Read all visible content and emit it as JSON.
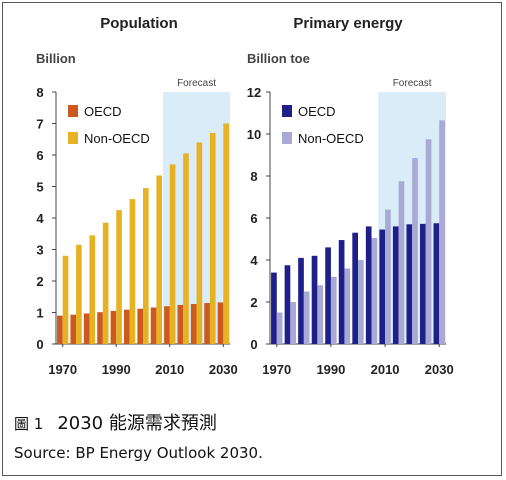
{
  "chart_data": [
    {
      "type": "bar",
      "title": "Population",
      "ylabel": "Billion",
      "ylim": [
        0,
        8
      ],
      "yticks": [
        "0",
        "1",
        "2",
        "3",
        "4",
        "5",
        "6",
        "7",
        "8"
      ],
      "xticks": [
        "1970",
        "1990",
        "2010",
        "2030"
      ],
      "forecast_label": "Forecast",
      "forecast_start": 2010,
      "stacked": false,
      "categories": [
        1970,
        1975,
        1980,
        1985,
        1990,
        1995,
        2000,
        2005,
        2010,
        2015,
        2020,
        2025,
        2030
      ],
      "series": [
        {
          "name": "OECD",
          "color": "#cc5a1e",
          "values": [
            0.9,
            0.93,
            0.97,
            1.01,
            1.05,
            1.09,
            1.12,
            1.16,
            1.2,
            1.24,
            1.27,
            1.3,
            1.32
          ]
        },
        {
          "name": "Non-OECD",
          "color": "#e6b223",
          "values": [
            2.8,
            3.15,
            3.45,
            3.85,
            4.25,
            4.6,
            4.95,
            5.35,
            5.7,
            6.05,
            6.4,
            6.7,
            7.0
          ]
        }
      ],
      "legend_position": "top-left"
    },
    {
      "type": "bar",
      "title": "Primary energy",
      "ylabel": "Billion toe",
      "ylim": [
        0,
        12
      ],
      "yticks": [
        "0",
        "2",
        "4",
        "6",
        "8",
        "10",
        "12"
      ],
      "xticks": [
        "1970",
        "1990",
        "2010",
        "2030"
      ],
      "forecast_label": "Forecast",
      "forecast_start": 2010,
      "stacked": false,
      "categories": [
        1970,
        1975,
        1980,
        1985,
        1990,
        1995,
        2000,
        2005,
        2010,
        2015,
        2020,
        2025,
        2030
      ],
      "series": [
        {
          "name": "OECD",
          "color": "#1f1f8a",
          "values": [
            3.4,
            3.75,
            4.1,
            4.2,
            4.6,
            4.95,
            5.3,
            5.6,
            5.45,
            5.6,
            5.7,
            5.72,
            5.75
          ]
        },
        {
          "name": "Non-OECD",
          "color": "#a9a9d6",
          "values": [
            1.5,
            2.0,
            2.5,
            2.8,
            3.2,
            3.6,
            4.0,
            5.05,
            6.4,
            7.75,
            8.85,
            9.75,
            10.65
          ]
        }
      ],
      "legend_position": "top-left"
    }
  ],
  "caption": {
    "figure_label": "圖 1",
    "title": "2030 能源需求預測",
    "source": "Source: BP Energy Outlook 2030."
  }
}
